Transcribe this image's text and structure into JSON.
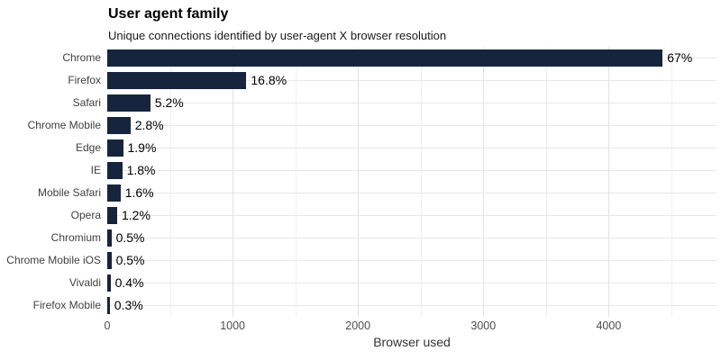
{
  "title": "User agent family",
  "subtitle": "Unique connections identified by user-agent X browser resolution",
  "xlabel": "Browser used",
  "colors": {
    "bar": "#16243E",
    "grid_major": "#e2e2e2",
    "grid_minor": "#efefef",
    "grid_row": "#e8e8e8",
    "category_label": "#404040",
    "tick_label": "#4d4d4d",
    "value_label": "#000000",
    "axis_title": "#333333",
    "background": "#ffffff"
  },
  "chart_data": {
    "type": "bar",
    "orientation": "horizontal",
    "title": "User agent family",
    "subtitle": "Unique connections identified by user-agent X browser resolution",
    "xlabel": "Browser used",
    "ylabel": "",
    "categories": [
      "Chrome",
      "Firefox",
      "Safari",
      "Chrome Mobile",
      "Edge",
      "IE",
      "Mobile Safari",
      "Opera",
      "Chromium",
      "Chrome Mobile iOS",
      "Vivaldi",
      "Firefox Mobile"
    ],
    "values": [
      4430,
      1110,
      344,
      185,
      126,
      119,
      106,
      79,
      33,
      33,
      26,
      20
    ],
    "value_labels": [
      "67%",
      "16.8%",
      "5.2%",
      "2.8%",
      "1.9%",
      "1.8%",
      "1.6%",
      "1.2%",
      "0.5%",
      "0.5%",
      "0.4%",
      "0.3%"
    ],
    "x_ticks": [
      0,
      1000,
      2000,
      3000,
      4000
    ],
    "x_minor_ticks": [
      500,
      1500,
      2500,
      3500,
      4500
    ],
    "xlim": [
      0,
      4860
    ],
    "grid": true,
    "legend": false
  }
}
